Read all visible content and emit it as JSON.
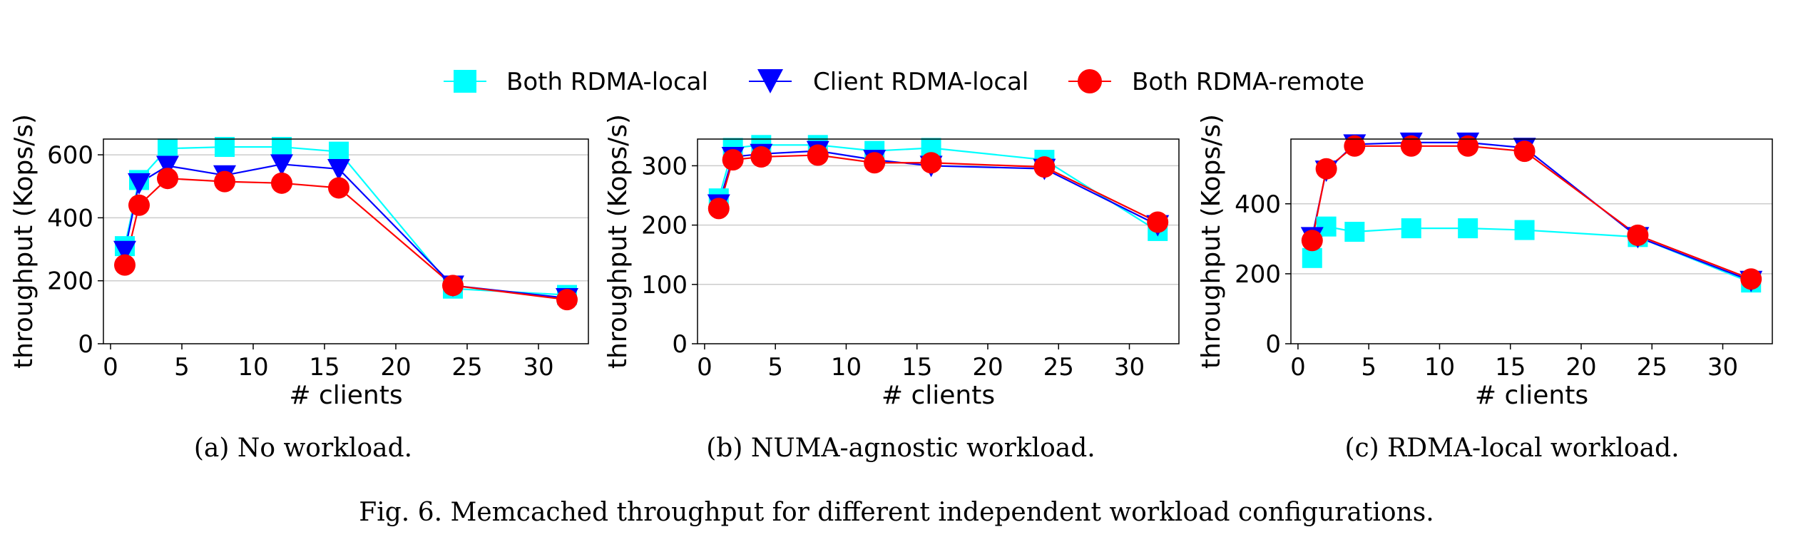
{
  "legend": [
    {
      "label": "Both RDMA-local",
      "color": "#00ffff",
      "marker": "square"
    },
    {
      "label": "Client RDMA-local",
      "color": "#0000ff",
      "marker": "triangle-down"
    },
    {
      "label": "Both RDMA-remote",
      "color": "#ff0000",
      "marker": "circle"
    }
  ],
  "figure_caption": "Fig. 6.  Memcached throughput for different independent workload configurations.",
  "chart_data": [
    {
      "type": "line",
      "caption": "(a) No workload.",
      "xlabel": "# clients",
      "ylabel": "throughput (Kops/s)",
      "xlim": [
        -0.5,
        33.5
      ],
      "ylim": [
        0,
        650
      ],
      "xticks": [
        0,
        5,
        10,
        15,
        20,
        25,
        30
      ],
      "yticks": [
        0,
        200,
        400,
        600
      ],
      "grid": true,
      "x": [
        1,
        2,
        4,
        8,
        12,
        16,
        24,
        32
      ],
      "series": [
        {
          "name": "Both RDMA-local",
          "values": [
            310,
            520,
            620,
            625,
            625,
            610,
            175,
            155
          ]
        },
        {
          "name": "Client RDMA-local",
          "values": [
            295,
            510,
            565,
            535,
            570,
            555,
            185,
            145
          ]
        },
        {
          "name": "Both RDMA-remote",
          "values": [
            250,
            440,
            525,
            515,
            510,
            495,
            185,
            140
          ]
        }
      ]
    },
    {
      "type": "line",
      "caption": "(b) NUMA-agnostic workload.",
      "xlabel": "# clients",
      "ylabel": "throughput (Kops/s)",
      "xlim": [
        -0.5,
        33.5
      ],
      "ylim": [
        0,
        345
      ],
      "xticks": [
        0,
        5,
        10,
        15,
        20,
        25,
        30
      ],
      "yticks": [
        0,
        100,
        200,
        300
      ],
      "grid": true,
      "x": [
        1,
        2,
        4,
        8,
        12,
        16,
        24,
        32
      ],
      "series": [
        {
          "name": "Both RDMA-local",
          "values": [
            245,
            330,
            335,
            335,
            325,
            330,
            310,
            190
          ]
        },
        {
          "name": "Client RDMA-local",
          "values": [
            235,
            315,
            320,
            325,
            310,
            300,
            295,
            200
          ]
        },
        {
          "name": "Both RDMA-remote",
          "values": [
            228,
            310,
            315,
            318,
            305,
            305,
            298,
            205
          ]
        }
      ]
    },
    {
      "type": "line",
      "caption": "(c) RDMA-local workload.",
      "xlabel": "# clients",
      "ylabel": "throughput (Kops/s)",
      "xlim": [
        -0.5,
        33.5
      ],
      "ylim": [
        0,
        585
      ],
      "xticks": [
        0,
        5,
        10,
        15,
        20,
        25,
        30
      ],
      "yticks": [
        0,
        200,
        400
      ],
      "grid": true,
      "x": [
        1,
        2,
        4,
        8,
        12,
        16,
        24,
        32
      ],
      "series": [
        {
          "name": "Both RDMA-local",
          "values": [
            245,
            335,
            320,
            330,
            330,
            325,
            305,
            175
          ]
        },
        {
          "name": "Client RDMA-local",
          "values": [
            305,
            495,
            570,
            575,
            575,
            560,
            305,
            180
          ]
        },
        {
          "name": "Both RDMA-remote",
          "values": [
            295,
            500,
            565,
            565,
            565,
            550,
            310,
            185
          ]
        }
      ]
    }
  ]
}
